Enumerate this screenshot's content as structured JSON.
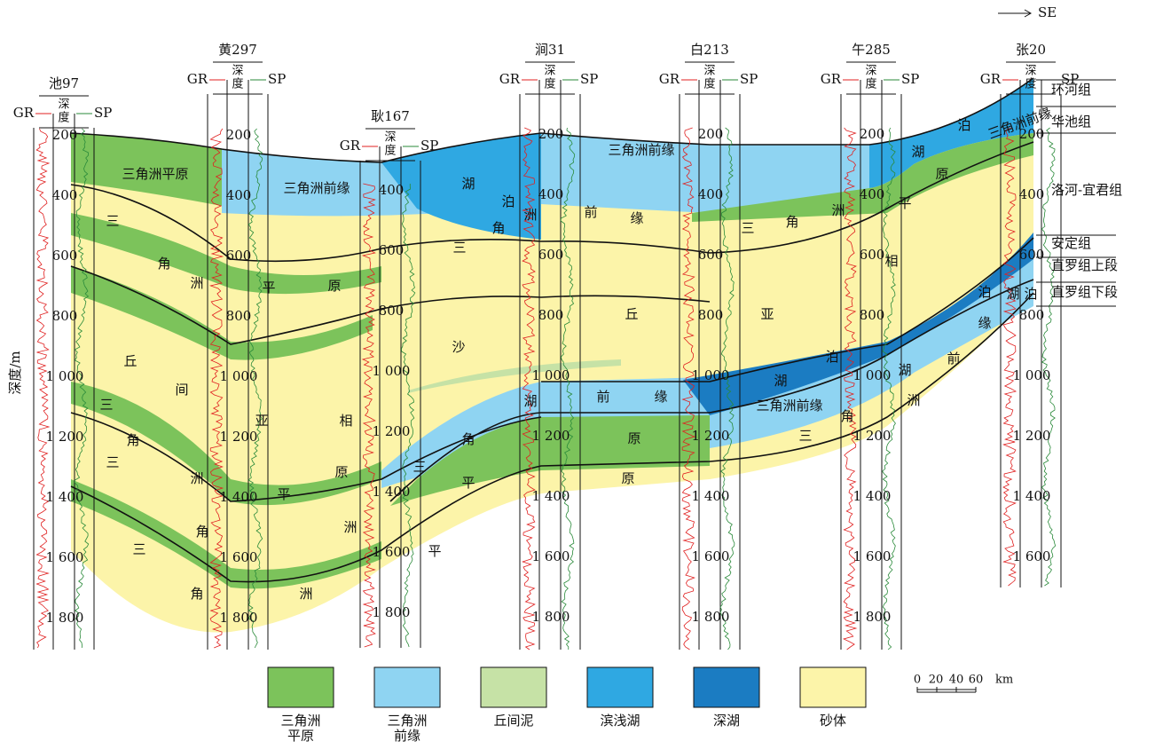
{
  "direction": "SE",
  "y_axis_label": "深度/m",
  "header": {
    "gr": "GR",
    "depth_top": "深",
    "depth_bottom": "度",
    "sp": "SP"
  },
  "wells": [
    {
      "name": "池97",
      "depths": [
        "200",
        "400",
        "600",
        "800",
        "1 000",
        "1 200",
        "1 400",
        "1 600",
        "1 800"
      ]
    },
    {
      "name": "黄297",
      "depths": [
        "200",
        "400",
        "600",
        "800",
        "1 000",
        "1 200",
        "1 400",
        "1 600",
        "1 800"
      ]
    },
    {
      "name": "耿167",
      "depths": [
        "400",
        "600",
        "800",
        "1 000",
        "1 200",
        "1 400",
        "1 600",
        "1 800"
      ]
    },
    {
      "name": "涧31",
      "depths": [
        "200",
        "400",
        "600",
        "800",
        "1 000",
        "1 200",
        "1 400",
        "1 600",
        "1 800"
      ]
    },
    {
      "name": "白213",
      "depths": [
        "200",
        "400",
        "600",
        "800",
        "1 000",
        "1 200",
        "1 400",
        "1 600",
        "1 800"
      ]
    },
    {
      "name": "午285",
      "depths": [
        "200",
        "400",
        "600",
        "800",
        "1 000",
        "1 200",
        "1 400",
        "1 600",
        "1 800"
      ]
    },
    {
      "name": "张20",
      "depths": [
        "200",
        "400",
        "600",
        "800",
        "1 000",
        "1 200",
        "1 400",
        "1 600"
      ]
    }
  ],
  "formations": [
    "环河组",
    "华池组",
    "洛河-宜君组",
    "安定组",
    "直罗组上段",
    "直罗组下段"
  ],
  "facies_labels": [
    "三角洲平原",
    "三角洲前缘",
    "三角洲前缘",
    "三角洲前缘",
    "三角洲前缘",
    "三",
    "角",
    "洲",
    "丘",
    "间",
    "三",
    "角",
    "三",
    "洲",
    "角",
    "三",
    "角",
    "洲",
    "平",
    "原",
    "洲",
    "平",
    "亚",
    "相",
    "平",
    "原",
    "沙",
    "湖",
    "泊",
    "三",
    "角",
    "洲",
    "前",
    "缘",
    "三",
    "角",
    "洲",
    "丘",
    "亚",
    "相",
    "平",
    "原",
    "湖",
    "泊",
    "前",
    "缘",
    "湖",
    "角",
    "平",
    "原",
    "原",
    "泊",
    "湖",
    "湖",
    "前",
    "洲",
    "角",
    "三",
    "泊",
    "湖",
    "泊",
    "缘",
    "三"
  ],
  "legend": [
    {
      "lines": [
        "三角洲",
        "平原"
      ],
      "color": "#7cc35b"
    },
    {
      "lines": [
        "三角洲",
        "前缘"
      ],
      "color": "#8fd4f2"
    },
    {
      "lines": [
        "丘间泥"
      ],
      "color": "#c6e2a6"
    },
    {
      "lines": [
        "滨浅湖"
      ],
      "color": "#2fa8e2"
    },
    {
      "lines": [
        "深湖"
      ],
      "color": "#1b7cc2"
    },
    {
      "lines": [
        "砂体"
      ],
      "color": "#fcf4a9"
    }
  ],
  "scale_bar": [
    "0",
    "20",
    "40",
    "60",
    "km"
  ]
}
